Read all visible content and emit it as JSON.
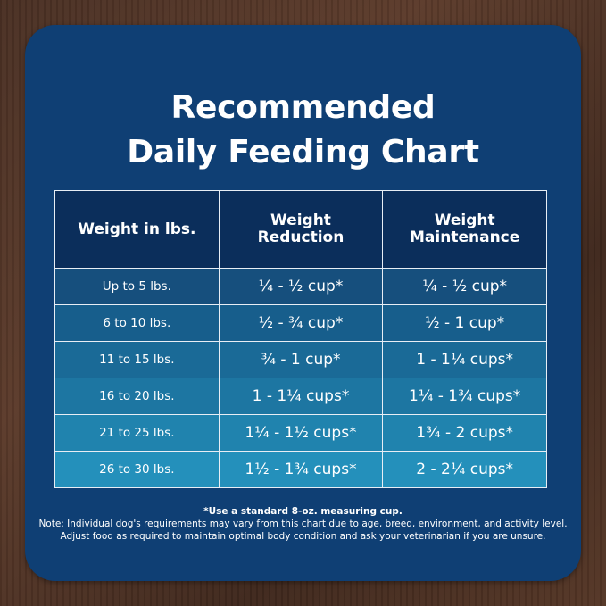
{
  "title": {
    "line1": "Recommended",
    "line2": "Daily Feeding Chart"
  },
  "table": {
    "headers": {
      "weight": "Weight in lbs.",
      "reduction_line1": "Weight",
      "reduction_line2": "Reduction",
      "maintenance_line1": "Weight",
      "maintenance_line2": "Maintenance"
    },
    "rows": [
      {
        "weight": "Up to 5 lbs.",
        "reduction": "¼ - ½ cup*",
        "maintenance": "¼ - ½ cup*"
      },
      {
        "weight": "6 to 10 lbs.",
        "reduction": "½ - ¾ cup*",
        "maintenance": "½ - 1 cup*"
      },
      {
        "weight": "11 to 15 lbs.",
        "reduction": "¾ - 1 cup*",
        "maintenance": "1 - 1¼ cups*"
      },
      {
        "weight": "16 to 20 lbs.",
        "reduction": "1 - 1¼ cups*",
        "maintenance": "1¼ - 1¾ cups*"
      },
      {
        "weight": "21 to 25 lbs.",
        "reduction": "1¼ - 1½ cups*",
        "maintenance": "1¾ - 2 cups*"
      },
      {
        "weight": "26 to 30 lbs.",
        "reduction": "1½ - 1¾ cups*",
        "maintenance": "2 - 2¼ cups*"
      }
    ]
  },
  "notes": {
    "measuring": "*Use a standard 8-oz. measuring cup.",
    "line1": "Note: Individual dog's requirements may vary from this chart due to age, breed, environment, and activity level.",
    "line2": "Adjust food as required to maintain optimal body condition and ask your veterinarian if you are unsure."
  },
  "colors": {
    "card": "#0f3f74",
    "header": "#0b2e5b",
    "row_start": "#164f7d",
    "row_end": "#2490bb",
    "text": "#ffffff"
  }
}
